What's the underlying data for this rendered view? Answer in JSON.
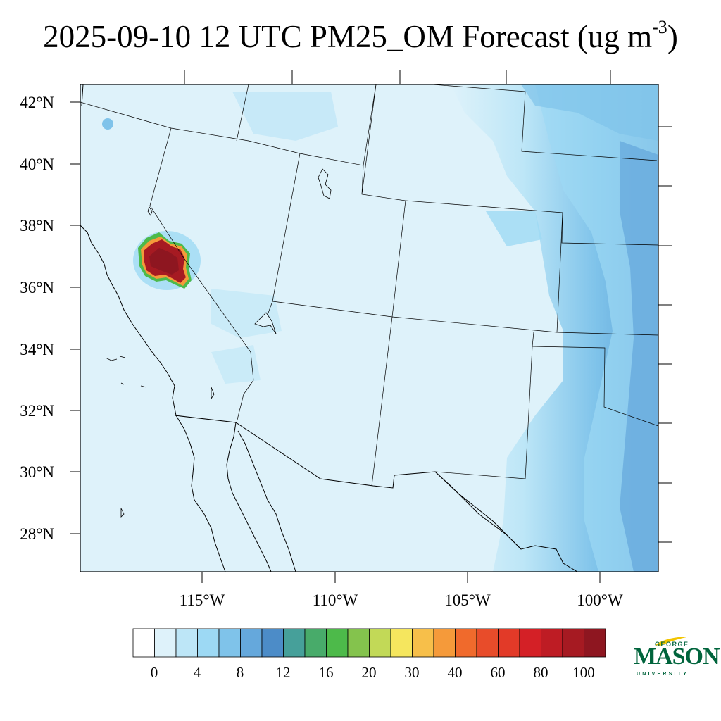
{
  "title": {
    "main": "2025-09-10 12 UTC PM25_OM Forecast (ug m",
    "superscript": "-3",
    "close": ")"
  },
  "axes": {
    "lat_labels": [
      "42°N",
      "40°N",
      "38°N",
      "36°N",
      "34°N",
      "32°N",
      "30°N",
      "28°N"
    ],
    "lon_labels": [
      "115°W",
      "110°W",
      "105°W",
      "100°W"
    ]
  },
  "colorbar": {
    "colors": [
      "#ffffff",
      "#def2fa",
      "#bde6f7",
      "#9dd9f4",
      "#7fc3ea",
      "#65a8dc",
      "#4c8cc8",
      "#46a09a",
      "#48ab6a",
      "#4dba4a",
      "#84c34d",
      "#c2d957",
      "#f5e65e",
      "#f7bf4a",
      "#f59a3a",
      "#f06a2c",
      "#e84c2a",
      "#e23a28",
      "#d42026",
      "#be1c24",
      "#a61a22",
      "#8e1620"
    ],
    "labels": [
      "0",
      "4",
      "8",
      "12",
      "16",
      "20",
      "30",
      "40",
      "60",
      "80",
      "100"
    ]
  },
  "logo": {
    "line1": "GEORGE",
    "line2": "MASON",
    "line3": "UNIVERSITY"
  }
}
